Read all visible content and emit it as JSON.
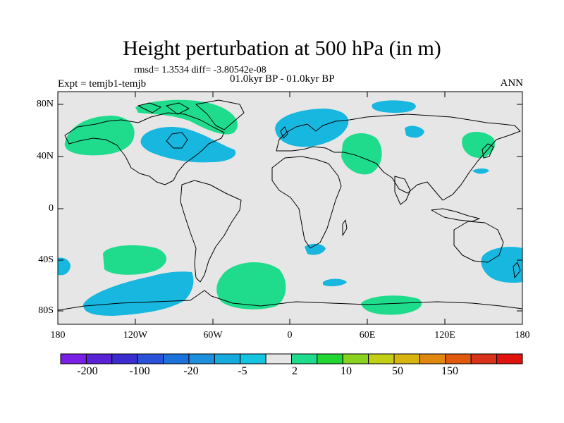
{
  "title": "Height perturbation at 500 hPa (in m)",
  "stats": "rmsd= 1.3534 diff= -3.80542e-08",
  "subtitle": "01.0kyr BP - 01.0kyr BP",
  "experiment": "Expt = temjb1-temjb",
  "season": "ANN",
  "axes": {
    "lat_ticks": [
      "80N",
      "40N",
      "0",
      "40S",
      "80S"
    ],
    "lon_ticks": [
      "180",
      "120W",
      "60W",
      "0",
      "60E",
      "120E",
      "180"
    ]
  },
  "colorbar": {
    "colors": [
      "#7a1fe6",
      "#5a22d6",
      "#3b2ccf",
      "#2a52d8",
      "#1b72da",
      "#1e8fdc",
      "#17aadf",
      "#15c4df",
      "#e6e6e6",
      "#1edc8c",
      "#22d633",
      "#8bd11f",
      "#c2cf14",
      "#d8b40f",
      "#e0870f",
      "#e0590d",
      "#d8321a",
      "#e0120c"
    ],
    "labels": [
      "-200",
      "-100",
      "-20",
      "-5",
      "2",
      "10",
      "50",
      "150"
    ]
  },
  "colors": {
    "ocean": "#e6e6e6",
    "positive": "#1edc8c",
    "negative": "#17b7e0"
  }
}
